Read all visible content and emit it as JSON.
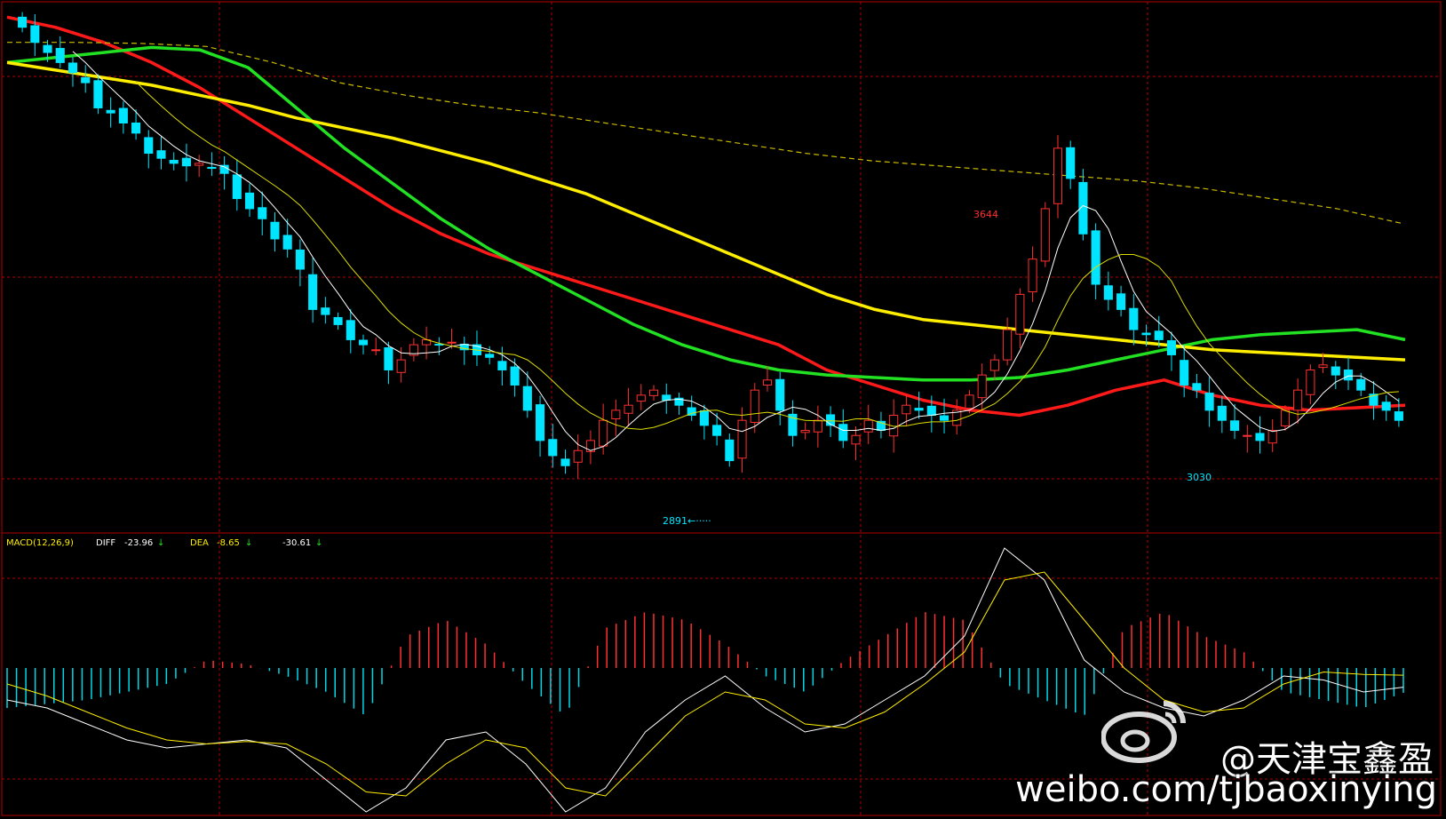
{
  "colors": {
    "background": "#000000",
    "grid": "#b40000",
    "up": "#00e5ff",
    "down": "#ff3030",
    "ma_red": "#ff1a1a",
    "ma_green": "#22e022",
    "ma_yellow": "#ffee00",
    "ma_long_dash": "#ccbb00",
    "ma_short_white": "#ffffff",
    "ma_short_yellow": "#dddd00",
    "macd_pos": "#ff3030",
    "macd_neg": "#00d8e8",
    "diff_line": "#ffffff",
    "dea_line": "#ffee00"
  },
  "price_panel": {
    "high_label": "3644",
    "low_label_1": "2891←·····",
    "low_label_2": "3030"
  },
  "macd_panel": {
    "title": "MACD(12,26,9)",
    "diff_label": "DIFF",
    "diff_value": "-23.96",
    "diff_arrow": "↓",
    "dea_label": "DEA",
    "dea_value": "-8.65",
    "dea_arrow": "↓",
    "macd_value": "-30.61",
    "macd_arrow": "↓"
  },
  "watermark": {
    "name": "@天津宝鑫盈",
    "url": "weibo.com/tjbaoxinying",
    "logo_icon": "weibo-icon"
  },
  "chart_data": [
    {
      "type": "candlestick",
      "title": "",
      "ylim": [
        2860,
        3900
      ],
      "annotations": [
        {
          "text": "3644",
          "value": 3644
        },
        {
          "text": "2891",
          "value": 2891
        },
        {
          "text": "3030",
          "value": 3030
        }
      ],
      "close": [
        3860,
        3830,
        3810,
        3790,
        3770,
        3750,
        3700,
        3690,
        3670,
        3650,
        3610,
        3600,
        3590,
        3585,
        3590,
        3580,
        3570,
        3520,
        3500,
        3480,
        3440,
        3420,
        3380,
        3300,
        3290,
        3270,
        3240,
        3230,
        3220,
        3180,
        3200,
        3230,
        3240,
        3230,
        3235,
        3220,
        3210,
        3205,
        3180,
        3150,
        3100,
        3040,
        3010,
        2990,
        3020,
        3040,
        3080,
        3100,
        3110,
        3130,
        3140,
        3120,
        3110,
        3090,
        3070,
        3050,
        3000,
        3080,
        3140,
        3160,
        3100,
        3050,
        3060,
        3080,
        3070,
        3040,
        3050,
        3080,
        3060,
        3090,
        3110,
        3100,
        3090,
        3080,
        3100,
        3130,
        3170,
        3200,
        3260,
        3330,
        3400,
        3500,
        3620,
        3560,
        3450,
        3350,
        3320,
        3300,
        3260,
        3250,
        3240,
        3210,
        3150,
        3140,
        3100,
        3080,
        3060,
        3050,
        3040,
        3060,
        3100,
        3140,
        3180,
        3190,
        3170,
        3160,
        3140,
        3110,
        3100,
        3080
      ],
      "ma_lines": [
        {
          "color": "ma_red",
          "values": [
            3880,
            3860,
            3830,
            3790,
            3740,
            3680,
            3620,
            3560,
            3500,
            3450,
            3410,
            3380,
            3350,
            3320,
            3290,
            3260,
            3230,
            3180,
            3150,
            3120,
            3100,
            3090,
            3110,
            3140,
            3160,
            3130,
            3110,
            3100,
            3105,
            3110
          ]
        },
        {
          "color": "ma_green",
          "values": [
            3790,
            3800,
            3810,
            3820,
            3815,
            3780,
            3700,
            3620,
            3550,
            3480,
            3420,
            3370,
            3320,
            3270,
            3230,
            3200,
            3180,
            3170,
            3165,
            3160,
            3160,
            3165,
            3180,
            3200,
            3220,
            3240,
            3250,
            3255,
            3260,
            3240
          ]
        },
        {
          "color": "ma_yellow",
          "values": [
            3790,
            3775,
            3760,
            3745,
            3725,
            3705,
            3680,
            3660,
            3640,
            3615,
            3590,
            3560,
            3530,
            3490,
            3450,
            3410,
            3370,
            3330,
            3300,
            3280,
            3270,
            3260,
            3250,
            3240,
            3230,
            3220,
            3215,
            3210,
            3205,
            3200
          ]
        },
        {
          "color": "ma_long_dash",
          "values": [
            3830,
            3830,
            3828,
            3822,
            3790,
            3750,
            3725,
            3705,
            3690,
            3670,
            3650,
            3630,
            3610,
            3595,
            3585,
            3575,
            3565,
            3555,
            3540,
            3520,
            3500,
            3470
          ]
        }
      ]
    },
    {
      "type": "bar",
      "title": "MACD(12,26,9)",
      "series": [
        {
          "name": "DIFF",
          "values": [
            -40,
            -50,
            -70,
            -90,
            -100,
            -95,
            -90,
            -100,
            -140,
            -180,
            -150,
            -90,
            -80,
            -120,
            -180,
            -150,
            -80,
            -40,
            -10,
            -50,
            -80,
            -70,
            -40,
            -10,
            40,
            150,
            110,
            10,
            -30,
            -50,
            -60,
            -40,
            -10,
            -15,
            -30,
            -24
          ]
        },
        {
          "name": "DEA",
          "values": [
            -20,
            -35,
            -55,
            -75,
            -90,
            -95,
            -92,
            -95,
            -120,
            -155,
            -160,
            -120,
            -90,
            -100,
            -150,
            -160,
            -110,
            -60,
            -30,
            -40,
            -70,
            -75,
            -55,
            -20,
            20,
            110,
            120,
            60,
            0,
            -40,
            -55,
            -50,
            -20,
            -5,
            -8,
            -9
          ]
        },
        {
          "name": "MACD",
          "values": [
            -50,
            -45,
            -40,
            -30,
            -20,
            10,
            5,
            -10,
            -30,
            -60,
            40,
            60,
            30,
            -20,
            -60,
            50,
            70,
            60,
            30,
            -10,
            -30,
            10,
            40,
            70,
            60,
            -20,
            -40,
            -60,
            50,
            70,
            40,
            20,
            -30,
            -40,
            -50,
            -31
          ]
        }
      ]
    }
  ]
}
